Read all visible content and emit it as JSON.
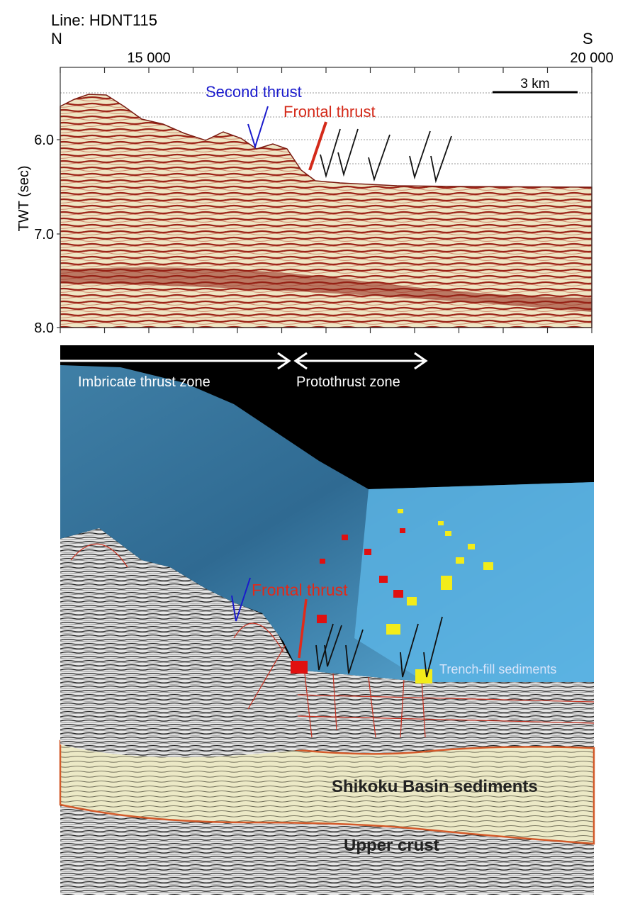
{
  "top_panel": {
    "title": "Line: HDNT115",
    "north": "N",
    "south": "S",
    "x_tick_labels": [
      "15 000",
      "20 000"
    ],
    "y_axis_label": "TWT (sec)",
    "y_tick_labels": [
      "6.0",
      "7.0",
      "8.0"
    ],
    "scale_bar": "3 km",
    "annotations": [
      "Second thrust",
      "Frontal thrust"
    ]
  },
  "bottom_panel": {
    "zones": [
      "Imbricate thrust zone",
      "Protothrust zone"
    ],
    "labels": [
      "Frontal thrust",
      "Trench-fill sediments",
      "Shikoku Basin sediments",
      "Upper crust"
    ]
  }
}
